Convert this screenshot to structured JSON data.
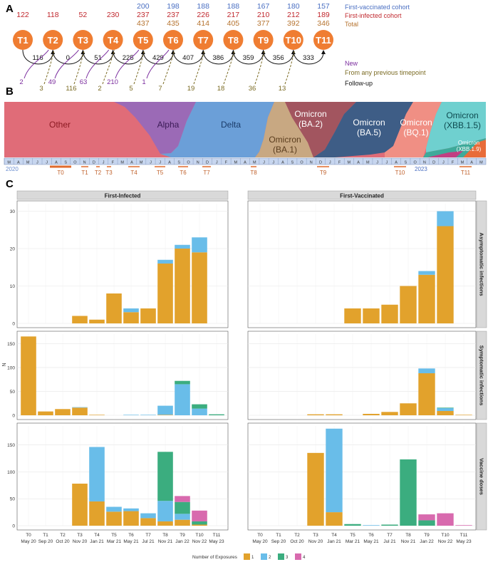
{
  "panel_a": {
    "label": "A",
    "timepoints": [
      "T1",
      "T2",
      "T3",
      "T4",
      "T5",
      "T6",
      "T7",
      "T8",
      "T9",
      "T10",
      "T11"
    ],
    "vaccinated_counts": [
      null,
      null,
      null,
      null,
      200,
      198,
      188,
      188,
      167,
      180,
      157
    ],
    "infected_counts": [
      122,
      118,
      52,
      230,
      237,
      237,
      226,
      217,
      210,
      212,
      189
    ],
    "total_counts": [
      null,
      null,
      null,
      null,
      437,
      435,
      414,
      405,
      377,
      392,
      346
    ],
    "followup": [
      116,
      0,
      51,
      225,
      429,
      407,
      386,
      359,
      356,
      333
    ],
    "new": [
      2,
      49,
      63,
      210,
      1
    ],
    "previous": [
      3,
      116,
      2,
      5,
      7,
      19,
      18,
      36,
      13
    ],
    "legend": {
      "vaccinated": "First-vaccinated cohort",
      "infected": "First-infected cohort",
      "total": "Total",
      "new": "New",
      "previous": "From any previous timepoint",
      "followup": "Follow-up"
    },
    "colors": {
      "circle": "#ef7d32",
      "vaccinated": "#4a6fc2",
      "infected": "#c0272d",
      "total": "#b5722e",
      "new": "#7b2d9e",
      "previous": "#7a6a22"
    }
  },
  "panel_b": {
    "label": "B",
    "variants": [
      "Other",
      "Alpha",
      "Delta",
      "Omicron",
      "(BA.1)",
      "Omicron",
      "(BA.2)",
      "Omicron",
      "(BA.5)",
      "Omicron",
      "(BQ.1)",
      "Omicron",
      "(XBB.1.5)",
      "Omicron",
      "(XBB.1.9)"
    ],
    "months": [
      "M",
      "A",
      "M",
      "J",
      "J",
      "A",
      "S",
      "O",
      "N",
      "D",
      "J",
      "F",
      "M",
      "A",
      "M",
      "J",
      "J",
      "A",
      "S",
      "O",
      "N",
      "D",
      "J",
      "F",
      "M",
      "A",
      "M",
      "J",
      "J",
      "A",
      "S",
      "O",
      "N",
      "D",
      "J",
      "F",
      "M",
      "A",
      "M",
      "J",
      "J",
      "A",
      "S",
      "O",
      "N",
      "D",
      "J",
      "F",
      "M",
      "A",
      "M"
    ],
    "years": [
      "2020",
      "2023"
    ],
    "markers": [
      "T0",
      "T1",
      "T2",
      "T3",
      "T4",
      "T5",
      "T6",
      "T7",
      "T8",
      "T9",
      "T10",
      "T11"
    ]
  },
  "panel_c": {
    "label": "C",
    "columns": [
      "First-Infected",
      "First-Vaccinated"
    ],
    "rows": [
      "Asymptomatic infections",
      "Symptomatic infections",
      "Vaccine doses"
    ],
    "y_label": "N",
    "x_ticks": [
      "T0",
      "T1",
      "T2",
      "T3",
      "T4",
      "T5",
      "T6",
      "T7",
      "T8",
      "T9",
      "T10",
      "T11"
    ],
    "x_dates": [
      "May 20",
      "Sep 20",
      "Oct 20",
      "Nov 20",
      "Jan 21",
      "Mar 21",
      "May 21",
      "Jul 21",
      "Nov 21",
      "Jan 22",
      "Nov 22",
      "May 23"
    ],
    "legend_title": "Number of Exposures",
    "legend_items": [
      "1",
      "2",
      "3",
      "4"
    ],
    "exposure_colors": [
      "#e2a22c",
      "#69bde9",
      "#3bad7f",
      "#d86aae"
    ]
  },
  "chart_data": {
    "type": "bar",
    "stacked": true,
    "categories": [
      "T0",
      "T1",
      "T2",
      "T3",
      "T4",
      "T5",
      "T6",
      "T7",
      "T8",
      "T9",
      "T10",
      "T11"
    ],
    "series_names": [
      "1",
      "2",
      "3",
      "4"
    ],
    "facets": [
      {
        "row": "Asymptomatic infections",
        "col": "First-Infected",
        "ylim": [
          0,
          32
        ],
        "ticks": [
          0,
          10,
          20,
          30
        ],
        "values": [
          [
            0,
            0,
            0,
            0
          ],
          [
            0,
            0,
            0,
            0
          ],
          [
            0,
            0,
            0,
            0
          ],
          [
            2,
            0,
            0,
            0
          ],
          [
            1,
            0,
            0,
            0
          ],
          [
            8,
            0,
            0,
            0
          ],
          [
            3,
            1,
            0,
            0
          ],
          [
            4,
            0,
            0,
            0
          ],
          [
            16,
            1,
            0,
            0
          ],
          [
            20,
            1,
            0,
            0
          ],
          [
            19,
            4,
            0,
            0
          ],
          [
            0,
            0,
            0,
            0
          ]
        ]
      },
      {
        "row": "Asymptomatic infections",
        "col": "First-Vaccinated",
        "ylim": [
          0,
          32
        ],
        "ticks": [
          0,
          10,
          20,
          30
        ],
        "values": [
          [
            0,
            0,
            0,
            0
          ],
          [
            0,
            0,
            0,
            0
          ],
          [
            0,
            0,
            0,
            0
          ],
          [
            0,
            0,
            0,
            0
          ],
          [
            0,
            0,
            0,
            0
          ],
          [
            4,
            0,
            0,
            0
          ],
          [
            4,
            0,
            0,
            0
          ],
          [
            5,
            0,
            0,
            0
          ],
          [
            10,
            0,
            0,
            0
          ],
          [
            13,
            1,
            0,
            0
          ],
          [
            26,
            4,
            0,
            0
          ],
          [
            0,
            0,
            0,
            0
          ]
        ]
      },
      {
        "row": "Symptomatic infections",
        "col": "First-Infected",
        "ylim": [
          0,
          170
        ],
        "ticks": [
          0,
          50,
          100,
          150
        ],
        "values": [
          [
            165,
            0,
            0,
            0
          ],
          [
            8,
            0,
            0,
            0
          ],
          [
            13,
            0,
            0,
            0
          ],
          [
            16,
            1,
            0,
            0
          ],
          [
            1,
            0,
            0,
            0
          ],
          [
            0,
            0,
            0,
            0
          ],
          [
            0,
            1,
            0,
            0
          ],
          [
            0,
            1,
            0,
            0
          ],
          [
            1,
            19,
            0,
            0
          ],
          [
            0,
            65,
            7,
            0
          ],
          [
            0,
            14,
            9,
            0
          ],
          [
            0,
            0,
            2,
            0
          ]
        ]
      },
      {
        "row": "Symptomatic infections",
        "col": "First-Vaccinated",
        "ylim": [
          0,
          170
        ],
        "ticks": [
          0,
          50,
          100,
          150
        ],
        "values": [
          [
            0,
            0,
            0,
            0
          ],
          [
            0,
            0,
            0,
            0
          ],
          [
            0,
            0,
            0,
            0
          ],
          [
            2,
            0,
            0,
            0
          ],
          [
            2,
            0,
            0,
            0
          ],
          [
            0,
            0,
            0,
            0
          ],
          [
            3,
            0,
            0,
            0
          ],
          [
            7,
            0,
            0,
            0
          ],
          [
            25,
            0,
            0,
            0
          ],
          [
            88,
            10,
            0,
            0
          ],
          [
            9,
            6,
            1,
            0
          ],
          [
            1,
            0,
            0,
            0
          ]
        ]
      },
      {
        "row": "Vaccine doses",
        "col": "First-Infected",
        "ylim": [
          0,
          185
        ],
        "ticks": [
          0,
          50,
          100,
          150
        ],
        "values": [
          [
            0,
            0,
            0,
            0
          ],
          [
            0,
            0,
            0,
            0
          ],
          [
            0,
            0,
            0,
            0
          ],
          [
            78,
            0,
            0,
            0
          ],
          [
            45,
            101,
            0,
            0
          ],
          [
            26,
            9,
            0,
            0
          ],
          [
            27,
            5,
            0,
            0
          ],
          [
            14,
            9,
            0,
            0
          ],
          [
            8,
            38,
            91,
            0
          ],
          [
            11,
            11,
            22,
            11
          ],
          [
            2,
            0,
            6,
            20
          ],
          [
            0,
            0,
            0,
            0
          ]
        ]
      },
      {
        "row": "Vaccine doses",
        "col": "First-Vaccinated",
        "ylim": [
          0,
          185
        ],
        "ticks": [
          0,
          50,
          100,
          150
        ],
        "values": [
          [
            0,
            0,
            0,
            0
          ],
          [
            0,
            0,
            0,
            0
          ],
          [
            0,
            0,
            0,
            0
          ],
          [
            135,
            0,
            0,
            0
          ],
          [
            25,
            155,
            0,
            0
          ],
          [
            0,
            0,
            3,
            0
          ],
          [
            0,
            1,
            0,
            0
          ],
          [
            0,
            0,
            2,
            0
          ],
          [
            0,
            0,
            123,
            0
          ],
          [
            0,
            0,
            10,
            11
          ],
          [
            0,
            0,
            0,
            23
          ],
          [
            0,
            0,
            0,
            1
          ]
        ]
      }
    ]
  }
}
